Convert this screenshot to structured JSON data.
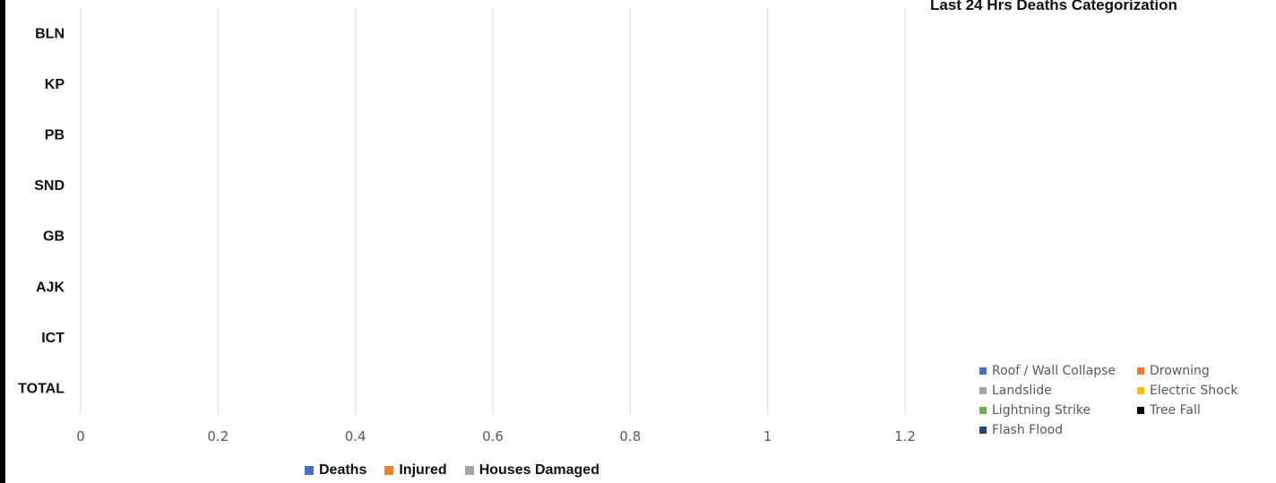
{
  "chart_data": [
    {
      "type": "bar",
      "orientation": "horizontal",
      "categories": [
        "BLN",
        "KP",
        "PB",
        "SND",
        "GB",
        "AJK",
        "ICT",
        "TOTAL"
      ],
      "series": [
        {
          "name": "Deaths",
          "color": "#4472C4",
          "values": [
            0,
            0,
            0,
            0,
            0,
            0,
            0,
            0
          ]
        },
        {
          "name": "Injured",
          "color": "#ED7D31",
          "values": [
            0,
            0,
            0,
            0,
            0,
            0,
            0,
            0
          ]
        },
        {
          "name": "Houses Damaged",
          "color": "#A5A5A5",
          "values": [
            0,
            0,
            0,
            0,
            0,
            0,
            0,
            0
          ]
        }
      ],
      "xlim": [
        0,
        1.2
      ],
      "x_ticks": [
        "0",
        "0.2",
        "0.4",
        "0.6",
        "0.8",
        "1",
        "1.2"
      ],
      "grid": true,
      "legend_position": "bottom"
    },
    {
      "type": "pie",
      "title": "Last 24 Hrs Deaths Categorization",
      "legend_position": "bottom-right",
      "series": [
        {
          "name": "Roof / Wall Collapse",
          "color": "#4472C4"
        },
        {
          "name": "Drowning",
          "color": "#ED7D31"
        },
        {
          "name": "Landslide",
          "color": "#A5A5A5"
        },
        {
          "name": "Electric Shock",
          "color": "#FFC000"
        },
        {
          "name": "Lightning Strike",
          "color": "#70AD47"
        },
        {
          "name": "Tree Fall",
          "color": "#000000"
        },
        {
          "name": "Flash Flood",
          "color": "#264478"
        }
      ]
    }
  ]
}
